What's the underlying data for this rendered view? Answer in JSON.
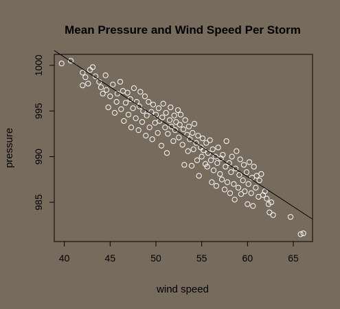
{
  "chart_data": {
    "type": "scatter",
    "title": "Mean Pressure and Wind Speed Per Storm",
    "xlabel": "wind speed",
    "ylabel": "pressure",
    "xlim": [
      38.9,
      67.1
    ],
    "ylim": [
      980.7,
      1001.2
    ],
    "x_ticks": [
      40,
      45,
      50,
      55,
      60,
      65
    ],
    "y_ticks": [
      985,
      990,
      995,
      1000
    ],
    "grid": false,
    "point_color": "#ffffff",
    "line_color": "#000000",
    "fit_line": {
      "slope": -0.655,
      "intercept": 1027.1
    },
    "series": [
      {
        "points": [
          [
            39.7,
            1000.2
          ],
          [
            40.7,
            1000.5
          ],
          [
            42.0,
            999.2
          ],
          [
            42.0,
            997.8
          ],
          [
            42.3,
            998.7
          ],
          [
            42.6,
            998.0
          ],
          [
            42.8,
            999.5
          ],
          [
            43.1,
            999.8
          ],
          [
            43.4,
            998.8
          ],
          [
            43.8,
            998.2
          ],
          [
            44.0,
            997.6
          ],
          [
            44.2,
            996.9
          ],
          [
            44.5,
            998.9
          ],
          [
            44.6,
            997.3
          ],
          [
            44.8,
            995.4
          ],
          [
            45.0,
            996.6
          ],
          [
            45.3,
            997.9
          ],
          [
            45.5,
            994.8
          ],
          [
            45.7,
            996.0
          ],
          [
            45.8,
            996.9
          ],
          [
            46.1,
            998.2
          ],
          [
            46.2,
            995.2
          ],
          [
            46.4,
            997.2
          ],
          [
            46.5,
            993.9
          ],
          [
            46.7,
            995.9
          ],
          [
            46.9,
            997.0
          ],
          [
            47.0,
            994.6
          ],
          [
            47.2,
            996.3
          ],
          [
            47.3,
            993.2
          ],
          [
            47.5,
            995.3
          ],
          [
            47.6,
            997.5
          ],
          [
            47.8,
            994.2
          ],
          [
            47.9,
            996.0
          ],
          [
            48.1,
            992.9
          ],
          [
            48.2,
            995.5
          ],
          [
            48.3,
            997.1
          ],
          [
            48.5,
            993.8
          ],
          [
            48.6,
            995.0
          ],
          [
            48.8,
            996.6
          ],
          [
            48.9,
            992.3
          ],
          [
            49.0,
            994.5
          ],
          [
            49.2,
            996.0
          ],
          [
            49.3,
            993.2
          ],
          [
            49.5,
            994.9
          ],
          [
            49.6,
            991.9
          ],
          [
            49.7,
            995.7
          ],
          [
            49.9,
            993.7
          ],
          [
            50.0,
            994.6
          ],
          [
            50.2,
            992.6
          ],
          [
            50.3,
            995.3
          ],
          [
            50.4,
            993.9
          ],
          [
            50.6,
            991.2
          ],
          [
            50.7,
            994.3
          ],
          [
            50.8,
            995.8
          ],
          [
            51.0,
            993.2
          ],
          [
            51.1,
            994.8
          ],
          [
            51.2,
            990.4
          ],
          [
            51.3,
            992.5
          ],
          [
            51.5,
            994.0
          ],
          [
            51.6,
            995.4
          ],
          [
            51.7,
            993.3
          ],
          [
            51.9,
            991.7
          ],
          [
            52.0,
            994.5
          ],
          [
            52.1,
            992.9
          ],
          [
            52.2,
            993.8
          ],
          [
            52.4,
            995.1
          ],
          [
            52.5,
            992.1
          ],
          [
            52.6,
            993.5
          ],
          [
            52.7,
            994.6
          ],
          [
            52.9,
            991.3
          ],
          [
            53.0,
            993.0
          ],
          [
            53.1,
            989.1
          ],
          [
            53.2,
            994.0
          ],
          [
            53.4,
            992.4
          ],
          [
            53.5,
            990.6
          ],
          [
            53.6,
            993.3
          ],
          [
            53.7,
            991.9
          ],
          [
            53.9,
            989.0
          ],
          [
            54.0,
            992.6
          ],
          [
            54.1,
            990.8
          ],
          [
            54.2,
            993.6
          ],
          [
            54.4,
            991.5
          ],
          [
            54.5,
            989.6
          ],
          [
            54.6,
            992.3
          ],
          [
            54.7,
            987.9
          ],
          [
            54.9,
            991.0
          ],
          [
            55.0,
            990.0
          ],
          [
            55.1,
            992.0
          ],
          [
            55.2,
            990.7
          ],
          [
            55.4,
            989.2
          ],
          [
            55.5,
            991.5
          ],
          [
            55.6,
            988.9
          ],
          [
            55.7,
            990.4
          ],
          [
            55.9,
            991.8
          ],
          [
            56.0,
            989.6
          ],
          [
            56.1,
            987.2
          ],
          [
            56.2,
            990.8
          ],
          [
            56.3,
            988.5
          ],
          [
            56.5,
            990.0
          ],
          [
            56.6,
            986.8
          ],
          [
            56.7,
            989.3
          ],
          [
            56.8,
            991.0
          ],
          [
            57.0,
            988.1
          ],
          [
            57.1,
            989.8
          ],
          [
            57.2,
            987.5
          ],
          [
            57.3,
            990.2
          ],
          [
            57.5,
            986.4
          ],
          [
            57.6,
            988.9
          ],
          [
            57.7,
            991.7
          ],
          [
            57.8,
            987.2
          ],
          [
            58.0,
            989.3
          ],
          [
            58.1,
            986.0
          ],
          [
            58.2,
            988.3
          ],
          [
            58.3,
            990.0
          ],
          [
            58.5,
            987.0
          ],
          [
            58.6,
            985.3
          ],
          [
            58.7,
            988.7
          ],
          [
            58.8,
            990.6
          ],
          [
            59.0,
            986.6
          ],
          [
            59.1,
            988.0
          ],
          [
            59.2,
            989.7
          ],
          [
            59.3,
            985.9
          ],
          [
            59.5,
            987.4
          ],
          [
            59.6,
            989.1
          ],
          [
            59.7,
            986.2
          ],
          [
            59.9,
            988.3
          ],
          [
            60.0,
            984.8
          ],
          [
            60.1,
            987.0
          ],
          [
            60.2,
            989.4
          ],
          [
            60.4,
            986.0
          ],
          [
            60.5,
            987.7
          ],
          [
            60.6,
            984.6
          ],
          [
            60.7,
            988.9
          ],
          [
            60.9,
            986.6
          ],
          [
            61.0,
            987.9
          ],
          [
            61.2,
            985.6
          ],
          [
            61.3,
            987.4
          ],
          [
            61.5,
            988.1
          ],
          [
            61.7,
            985.8
          ],
          [
            61.9,
            986.2
          ],
          [
            62.1,
            985.4
          ],
          [
            62.3,
            984.8
          ],
          [
            62.4,
            983.9
          ],
          [
            62.6,
            985.0
          ],
          [
            62.8,
            983.6
          ],
          [
            64.7,
            983.4
          ],
          [
            65.8,
            981.5
          ],
          [
            66.1,
            981.6
          ]
        ]
      }
    ]
  }
}
